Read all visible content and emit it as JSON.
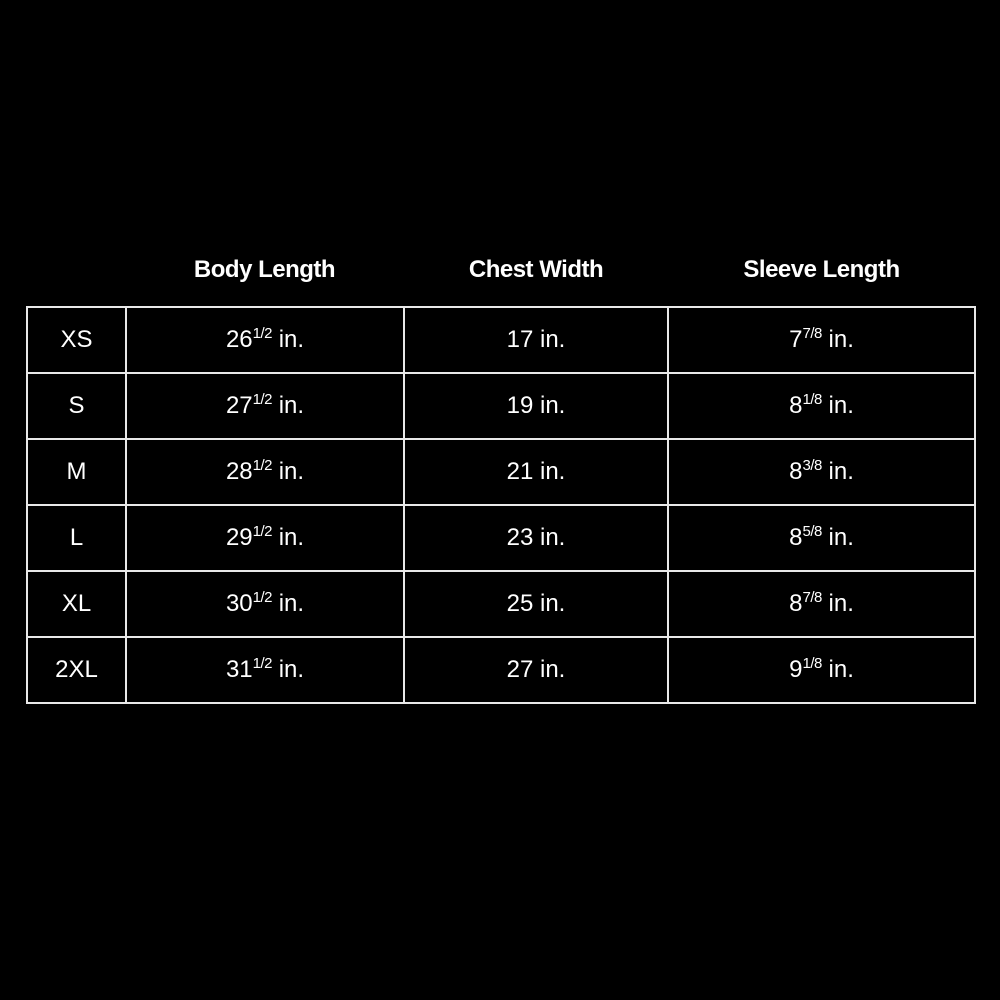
{
  "headers": [
    "Body Length",
    "Chest Width",
    "Sleeve Length"
  ],
  "unit": "in.",
  "rows": [
    {
      "size": "XS",
      "body": {
        "whole": "26",
        "frac": "1/2"
      },
      "chest": "17",
      "sleeve": {
        "whole": "7",
        "frac": "7/8"
      }
    },
    {
      "size": "S",
      "body": {
        "whole": "27",
        "frac": "1/2"
      },
      "chest": "19",
      "sleeve": {
        "whole": "8",
        "frac": "1/8"
      }
    },
    {
      "size": "M",
      "body": {
        "whole": "28",
        "frac": "1/2"
      },
      "chest": "21",
      "sleeve": {
        "whole": "8",
        "frac": "3/8"
      }
    },
    {
      "size": "L",
      "body": {
        "whole": "29",
        "frac": "1/2"
      },
      "chest": "23",
      "sleeve": {
        "whole": "8",
        "frac": "5/8"
      }
    },
    {
      "size": "XL",
      "body": {
        "whole": "30",
        "frac": "1/2"
      },
      "chest": "25",
      "sleeve": {
        "whole": "8",
        "frac": "7/8"
      }
    },
    {
      "size": "2XL",
      "body": {
        "whole": "31",
        "frac": "1/2"
      },
      "chest": "27",
      "sleeve": {
        "whole": "9",
        "frac": "1/8"
      }
    }
  ]
}
